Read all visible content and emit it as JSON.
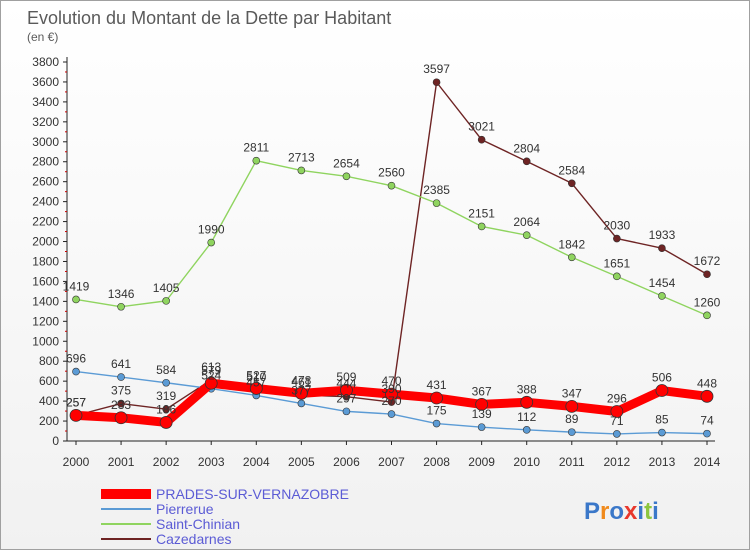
{
  "chart_data": {
    "type": "line",
    "title": "Evolution du Montant de la Dette par Habitant",
    "unit_label": "(en €)",
    "categories": [
      "2000",
      "2001",
      "2002",
      "2003",
      "2004",
      "2005",
      "2006",
      "2007",
      "2008",
      "2009",
      "2010",
      "2011",
      "2012",
      "2013",
      "2014"
    ],
    "ylim": [
      0,
      3800
    ],
    "yticks": [
      0,
      200,
      400,
      600,
      800,
      1000,
      1200,
      1400,
      1600,
      1800,
      2000,
      2200,
      2400,
      2600,
      2800,
      3000,
      3200,
      3400,
      3600,
      3800
    ],
    "grid": false,
    "legend_position": "bottom-left",
    "series": [
      {
        "name": "PRADES-SUR-VERNAZOBRE",
        "color": "#ff0000",
        "values": [
          257,
          233,
          186,
          579,
          527,
          478,
          509,
          470,
          431,
          367,
          388,
          347,
          296,
          506,
          448
        ]
      },
      {
        "name": "Pierrerue",
        "color": "#5b9bd5",
        "values": [
          696,
          641,
          584,
          524,
          457,
          377,
          297,
          270,
          175,
          139,
          112,
          89,
          71,
          85,
          74
        ]
      },
      {
        "name": "Saint-Chinian",
        "color": "#8fd45f",
        "values": [
          1419,
          1346,
          1405,
          1990,
          2811,
          2713,
          2654,
          2560,
          2385,
          2151,
          2064,
          1842,
          1651,
          1454,
          1260
        ]
      },
      {
        "name": "Cazedarnes",
        "color": "#6e2424",
        "values": [
          257,
          375,
          319,
          613,
          510,
          461,
          444,
          390,
          3597,
          3021,
          2804,
          2584,
          2030,
          1933,
          1672
        ]
      }
    ]
  },
  "logo": {
    "text": "Proxiti"
  }
}
